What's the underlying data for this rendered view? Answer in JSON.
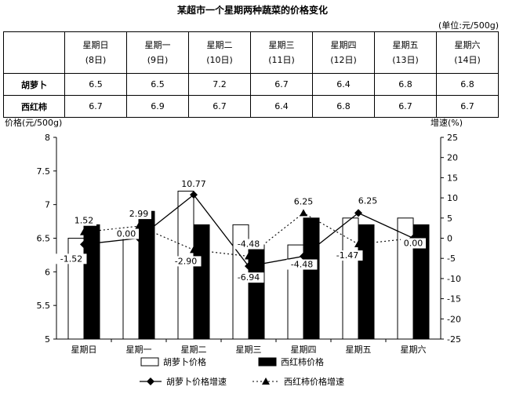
{
  "title": "某超市一个星期两种蔬菜的价格变化",
  "unit": "(单位:元/500g)",
  "table": {
    "days": [
      {
        "name": "星期日",
        "date": "(8日)"
      },
      {
        "name": "星期一",
        "date": "(9日)"
      },
      {
        "name": "星期二",
        "date": "(10日)"
      },
      {
        "name": "星期三",
        "date": "(11日)"
      },
      {
        "name": "星期四",
        "date": "(12日)"
      },
      {
        "name": "星期五",
        "date": "(13日)"
      },
      {
        "name": "星期六",
        "date": "(14日)"
      }
    ],
    "rows": [
      {
        "label": "胡萝卜",
        "values": [
          "6.5",
          "6.5",
          "7.2",
          "6.7",
          "6.4",
          "6.8",
          "6.8"
        ]
      },
      {
        "label": "西红柿",
        "values": [
          "6.7",
          "6.9",
          "6.7",
          "6.4",
          "6.8",
          "6.7",
          "6.7"
        ]
      }
    ]
  },
  "chart_data": {
    "type": "bar",
    "categories": [
      "星期日",
      "星期一",
      "星期二",
      "星期三",
      "星期四",
      "星期五",
      "星期六"
    ],
    "ylabel": "价格(元/500g)",
    "y2label": "增速(%)",
    "ylim": [
      5,
      8
    ],
    "yticks": [
      "5",
      "5.5",
      "6",
      "6.5",
      "7",
      "7.5",
      "8"
    ],
    "y2lim": [
      -25,
      25
    ],
    "y2ticks": [
      "-25",
      "-20",
      "-15",
      "-10",
      "-5",
      "0",
      "5",
      "10",
      "15",
      "20",
      "25"
    ],
    "series": [
      {
        "name": "胡萝卜价格",
        "kind": "bar",
        "color": "#ffffff",
        "values": [
          6.5,
          6.5,
          7.2,
          6.7,
          6.4,
          6.8,
          6.8
        ]
      },
      {
        "name": "西红柿价格",
        "kind": "bar",
        "color": "#000000",
        "values": [
          6.7,
          6.9,
          6.7,
          6.4,
          6.8,
          6.7,
          6.7
        ]
      },
      {
        "name": "胡萝卜价格增速",
        "kind": "line",
        "axis": "right",
        "style": "solid",
        "marker": "diamond",
        "values": [
          -1.52,
          0.0,
          10.77,
          -6.94,
          -4.48,
          6.25,
          0.0
        ],
        "labels": [
          "-1.52",
          "0.00",
          "10.77",
          "-6.94",
          "-4.48",
          "6.25",
          "0.00"
        ]
      },
      {
        "name": "西红柿价格增速",
        "kind": "line",
        "axis": "right",
        "style": "dotted",
        "marker": "triangle",
        "values": [
          1.52,
          2.99,
          -2.9,
          -4.48,
          6.25,
          -1.47,
          0.0
        ],
        "labels": [
          "1.52",
          "2.99",
          "-2.90",
          "-4.48",
          "6.25",
          "-1.47",
          ""
        ]
      }
    ],
    "legend_position": "bottom",
    "grid": false
  }
}
